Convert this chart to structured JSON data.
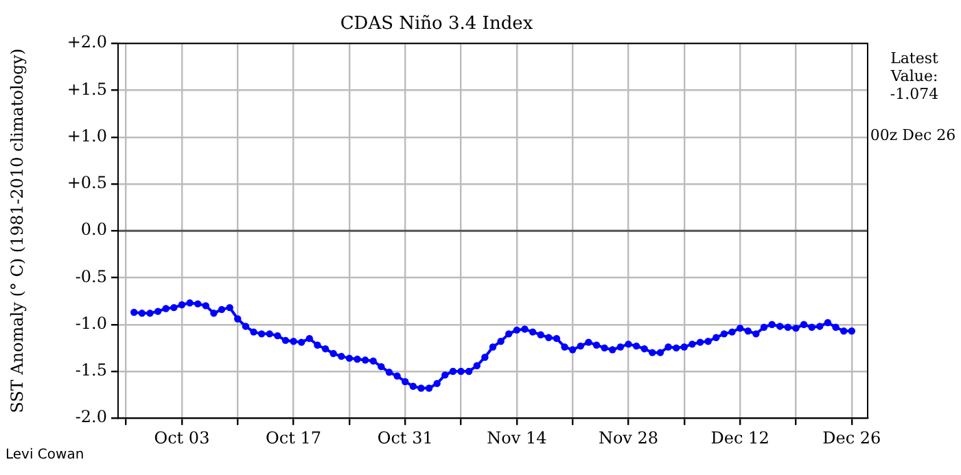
{
  "chart_data": {
    "type": "line",
    "title": "CDAS Niño 3.4 Index",
    "ylabel": "SST Anomaly (° C) (1981-2010 climatology)",
    "x": [
      "--09-27",
      "--09-28",
      "--09-29",
      "--09-30",
      "--10-01",
      "--10-02",
      "--10-03",
      "--10-04",
      "--10-05",
      "--10-06",
      "--10-07",
      "--10-08",
      "--10-09",
      "--10-10",
      "--10-11",
      "--10-12",
      "--10-13",
      "--10-14",
      "--10-15",
      "--10-16",
      "--10-17",
      "--10-18",
      "--10-19",
      "--10-20",
      "--10-21",
      "--10-22",
      "--10-23",
      "--10-24",
      "--10-25",
      "--10-26",
      "--10-27",
      "--10-28",
      "--10-29",
      "--10-30",
      "--10-31",
      "--11-01",
      "--11-02",
      "--11-03",
      "--11-04",
      "--11-05",
      "--11-06",
      "--11-07",
      "--11-08",
      "--11-09",
      "--11-10",
      "--11-11",
      "--11-12",
      "--11-13",
      "--11-14",
      "--11-15",
      "--11-16",
      "--11-17",
      "--11-18",
      "--11-19",
      "--11-20",
      "--11-21",
      "--11-22",
      "--11-23",
      "--11-24",
      "--11-25",
      "--11-26",
      "--11-27",
      "--11-28",
      "--11-29",
      "--11-30",
      "--12-01",
      "--12-02",
      "--12-03",
      "--12-04",
      "--12-05",
      "--12-06",
      "--12-07",
      "--12-08",
      "--12-09",
      "--12-10",
      "--12-11",
      "--12-12",
      "--12-13",
      "--12-14",
      "--12-15",
      "--12-16",
      "--12-17",
      "--12-18",
      "--12-19",
      "--12-20",
      "--12-21",
      "--12-22",
      "--12-23",
      "--12-24",
      "--12-25",
      "--12-26"
    ],
    "series": [
      {
        "color": "#0000ff",
        "values": [
          -0.87,
          -0.88,
          -0.88,
          -0.86,
          -0.83,
          -0.82,
          -0.79,
          -0.77,
          -0.78,
          -0.8,
          -0.88,
          -0.84,
          -0.82,
          -0.94,
          -1.02,
          -1.08,
          -1.1,
          -1.1,
          -1.12,
          -1.17,
          -1.18,
          -1.19,
          -1.15,
          -1.22,
          -1.26,
          -1.31,
          -1.34,
          -1.36,
          -1.37,
          -1.38,
          -1.39,
          -1.45,
          -1.51,
          -1.55,
          -1.61,
          -1.66,
          -1.68,
          -1.68,
          -1.63,
          -1.54,
          -1.5,
          -1.5,
          -1.5,
          -1.44,
          -1.35,
          -1.24,
          -1.18,
          -1.1,
          -1.06,
          -1.05,
          -1.08,
          -1.11,
          -1.14,
          -1.15,
          -1.24,
          -1.27,
          -1.23,
          -1.19,
          -1.22,
          -1.25,
          -1.27,
          -1.24,
          -1.21,
          -1.23,
          -1.26,
          -1.3,
          -1.3,
          -1.24,
          -1.25,
          -1.24,
          -1.21,
          -1.19,
          -1.18,
          -1.14,
          -1.1,
          -1.08,
          -1.04,
          -1.07,
          -1.1,
          -1.03,
          -1.0,
          -1.02,
          -1.03,
          -1.04,
          -1.0,
          -1.03,
          -1.02,
          -0.98,
          -1.03,
          -1.07,
          -1.07
        ]
      }
    ],
    "xlim": [
      "--09-25",
      "--12-28"
    ],
    "xticks": [
      {
        "value": "--09-26",
        "label": null
      },
      {
        "value": "--10-03",
        "label": "Oct 03"
      },
      {
        "value": "--10-10",
        "label": null
      },
      {
        "value": "--10-17",
        "label": "Oct 17"
      },
      {
        "value": "--10-24",
        "label": null
      },
      {
        "value": "--10-31",
        "label": "Oct 31"
      },
      {
        "value": "--11-07",
        "label": null
      },
      {
        "value": "--11-14",
        "label": "Nov 14"
      },
      {
        "value": "--11-21",
        "label": null
      },
      {
        "value": "--11-28",
        "label": "Nov 28"
      },
      {
        "value": "--12-05",
        "label": null
      },
      {
        "value": "--12-12",
        "label": "Dec 12"
      },
      {
        "value": "--12-19",
        "label": null
      },
      {
        "value": "--12-26",
        "label": "Dec 26"
      }
    ],
    "ylim": [
      -2,
      2
    ],
    "yticks": [
      {
        "value": -2,
        "label": "-2.0"
      },
      {
        "value": -1.5,
        "label": "-1.5"
      },
      {
        "value": -1,
        "label": "-1.0"
      },
      {
        "value": -0.5,
        "label": "-0.5"
      },
      {
        "value": 0,
        "label": "0.0"
      },
      {
        "value": 0.5,
        "label": "+0.5"
      },
      {
        "value": 1,
        "label": "+1.0"
      },
      {
        "value": 1.5,
        "label": "+1.5"
      },
      {
        "value": 2,
        "label": "+2.0"
      }
    ],
    "ref_lines": [
      {
        "axis": "y",
        "value": 0,
        "color": "#555555"
      }
    ],
    "grid": true,
    "marker": "circle",
    "line_style": "solid",
    "legend": false,
    "annotations": [
      "Latest Value: -1.074",
      "00z Dec 26",
      "Levi Cowan"
    ]
  }
}
